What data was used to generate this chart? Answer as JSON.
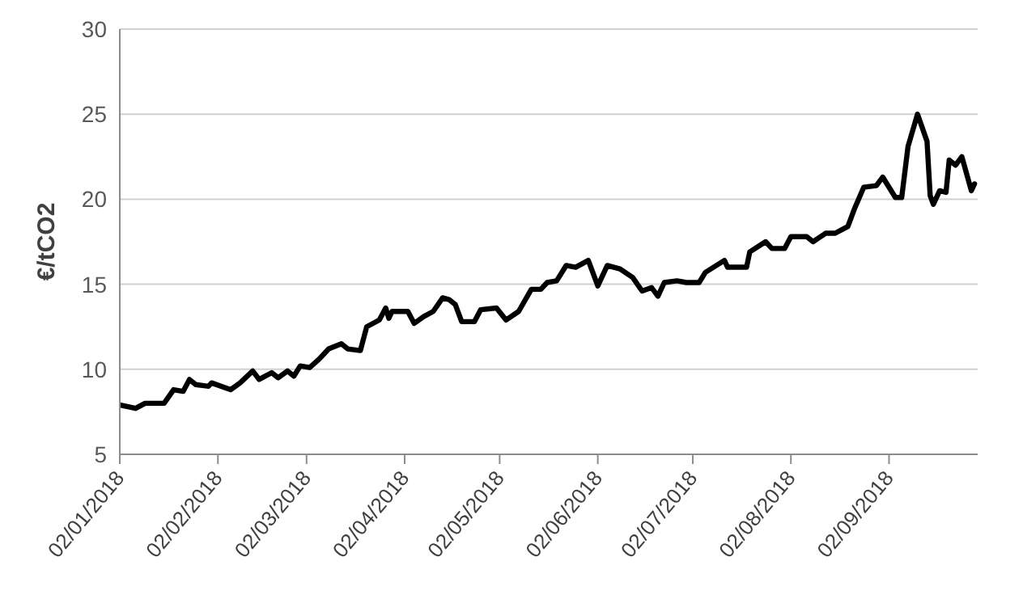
{
  "chart_data": {
    "type": "line",
    "ylabel": "€/tCO2",
    "x": [
      "2018-01-02",
      "2018-01-07",
      "2018-01-10",
      "2018-01-16",
      "2018-01-19",
      "2018-01-22",
      "2018-01-24",
      "2018-01-26",
      "2018-01-30",
      "2018-01-31",
      "2018-02-06",
      "2018-02-09",
      "2018-02-13",
      "2018-02-15",
      "2018-02-19",
      "2018-02-21",
      "2018-02-24",
      "2018-02-26",
      "2018-02-28",
      "2018-03-03",
      "2018-03-06",
      "2018-03-09",
      "2018-03-13",
      "2018-03-15",
      "2018-03-19",
      "2018-03-21",
      "2018-03-25",
      "2018-03-27",
      "2018-03-28",
      "2018-03-29",
      "2018-04-03",
      "2018-04-05",
      "2018-04-08",
      "2018-04-11",
      "2018-04-14",
      "2018-04-16",
      "2018-04-18",
      "2018-04-20",
      "2018-04-24",
      "2018-04-26",
      "2018-05-01",
      "2018-05-04",
      "2018-05-08",
      "2018-05-12",
      "2018-05-15",
      "2018-05-17",
      "2018-05-20",
      "2018-05-23",
      "2018-05-26",
      "2018-05-30",
      "2018-06-02",
      "2018-06-05",
      "2018-06-09",
      "2018-06-13",
      "2018-06-16",
      "2018-06-19",
      "2018-06-21",
      "2018-06-23",
      "2018-06-27",
      "2018-06-30",
      "2018-07-04",
      "2018-07-06",
      "2018-07-12",
      "2018-07-13",
      "2018-07-19",
      "2018-07-20",
      "2018-07-25",
      "2018-07-27",
      "2018-07-31",
      "2018-08-02",
      "2018-08-07",
      "2018-08-09",
      "2018-08-13",
      "2018-08-16",
      "2018-08-20",
      "2018-08-22",
      "2018-08-25",
      "2018-08-29",
      "2018-08-31",
      "2018-09-04",
      "2018-09-06",
      "2018-09-08",
      "2018-09-11",
      "2018-09-14",
      "2018-09-15",
      "2018-09-16",
      "2018-09-18",
      "2018-09-20",
      "2018-09-21",
      "2018-09-23",
      "2018-09-25",
      "2018-09-28",
      "2018-09-29"
    ],
    "series": [
      {
        "color": "#000000",
        "values": [
          7.9,
          7.7,
          8.0,
          8.0,
          8.8,
          8.7,
          9.4,
          9.1,
          9.0,
          9.2,
          8.8,
          9.2,
          9.9,
          9.4,
          9.8,
          9.5,
          9.9,
          9.6,
          10.2,
          10.1,
          10.6,
          11.2,
          11.5,
          11.2,
          11.1,
          12.5,
          12.9,
          13.6,
          13.0,
          13.4,
          13.4,
          12.7,
          13.1,
          13.4,
          14.2,
          14.1,
          13.8,
          12.8,
          12.8,
          13.5,
          13.6,
          12.9,
          13.4,
          14.7,
          14.7,
          15.1,
          15.2,
          16.1,
          16.0,
          16.4,
          14.9,
          16.1,
          15.9,
          15.4,
          14.6,
          14.8,
          14.3,
          15.1,
          15.2,
          15.1,
          15.1,
          15.7,
          16.4,
          16.0,
          16.0,
          16.9,
          17.5,
          17.1,
          17.1,
          17.8,
          17.8,
          17.5,
          18.0,
          18.0,
          18.4,
          19.4,
          20.7,
          20.8,
          21.3,
          20.1,
          20.1,
          23.1,
          25.0,
          23.4,
          20.2,
          19.7,
          20.5,
          20.4,
          22.3,
          22.0,
          22.5,
          20.5,
          20.9
        ]
      }
    ],
    "xlim": [
      "2018-01-02",
      "2018-09-30"
    ],
    "xticks": [
      {
        "value": "2018-01-02",
        "label": "02/01/2018"
      },
      {
        "value": "2018-02-02",
        "label": "02/02/2018"
      },
      {
        "value": "2018-03-02",
        "label": "02/03/2018"
      },
      {
        "value": "2018-04-02",
        "label": "02/04/2018"
      },
      {
        "value": "2018-05-02",
        "label": "02/05/2018"
      },
      {
        "value": "2018-06-02",
        "label": "02/06/2018"
      },
      {
        "value": "2018-07-02",
        "label": "02/07/2018"
      },
      {
        "value": "2018-08-02",
        "label": "02/08/2018"
      },
      {
        "value": "2018-09-02",
        "label": "02/09/2018"
      }
    ],
    "ylim": [
      5,
      30
    ],
    "yticks": [
      5,
      10,
      15,
      20,
      25,
      30
    ],
    "grid": "y",
    "marker": "none",
    "line_style": "solid"
  }
}
